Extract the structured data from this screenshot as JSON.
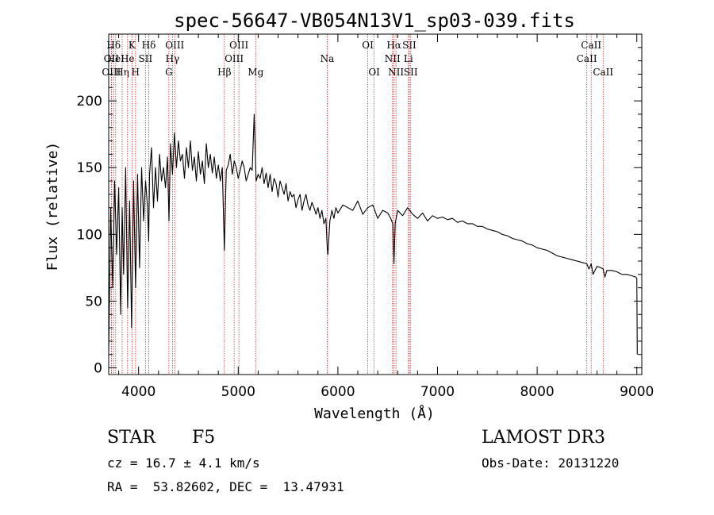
{
  "chart_data": {
    "type": "line",
    "title": "spec-56647-VB054N13V1_sp03-039.fits",
    "xlabel": "Wavelength (Å)",
    "ylabel": "Flux (relative)",
    "xlim": [
      3700,
      9050
    ],
    "ylim": [
      -5,
      250
    ],
    "xticks": [
      4000,
      5000,
      6000,
      7000,
      8000,
      9000
    ],
    "yticks": [
      0,
      50,
      100,
      150,
      200
    ],
    "series": [
      {
        "name": "flux",
        "x": [
          3700,
          3720,
          3740,
          3760,
          3780,
          3800,
          3820,
          3835,
          3850,
          3870,
          3890,
          3910,
          3930,
          3950,
          3970,
          3990,
          4010,
          4030,
          4050,
          4070,
          4090,
          4101,
          4110,
          4130,
          4150,
          4170,
          4190,
          4210,
          4230,
          4250,
          4270,
          4290,
          4305,
          4320,
          4340,
          4360,
          4380,
          4400,
          4420,
          4440,
          4460,
          4480,
          4500,
          4520,
          4540,
          4560,
          4580,
          4600,
          4620,
          4640,
          4660,
          4680,
          4700,
          4720,
          4740,
          4760,
          4780,
          4800,
          4820,
          4840,
          4861,
          4880,
          4900,
          4920,
          4940,
          4960,
          4980,
          5000,
          5020,
          5040,
          5060,
          5080,
          5100,
          5120,
          5140,
          5160,
          5170,
          5180,
          5200,
          5220,
          5240,
          5260,
          5280,
          5300,
          5320,
          5340,
          5360,
          5380,
          5400,
          5420,
          5440,
          5460,
          5480,
          5500,
          5520,
          5540,
          5560,
          5580,
          5600,
          5620,
          5640,
          5660,
          5680,
          5700,
          5720,
          5740,
          5760,
          5780,
          5800,
          5820,
          5840,
          5860,
          5880,
          5893,
          5900,
          5920,
          5940,
          5960,
          5980,
          6000,
          6050,
          6100,
          6150,
          6200,
          6250,
          6300,
          6350,
          6400,
          6450,
          6500,
          6530,
          6550,
          6563,
          6575,
          6600,
          6650,
          6700,
          6750,
          6800,
          6850,
          6900,
          6950,
          7000,
          7050,
          7100,
          7150,
          7200,
          7250,
          7300,
          7350,
          7400,
          7450,
          7500,
          7550,
          7600,
          7650,
          7700,
          7750,
          7800,
          7850,
          7900,
          7950,
          8000,
          8050,
          8100,
          8150,
          8200,
          8250,
          8300,
          8350,
          8400,
          8450,
          8498,
          8520,
          8542,
          8560,
          8600,
          8640,
          8662,
          8680,
          8700,
          8750,
          8800,
          8850,
          8900,
          8950,
          8990,
          9000,
          9005
        ],
        "values": [
          10,
          120,
          60,
          140,
          85,
          135,
          40,
          120,
          70,
          150,
          45,
          125,
          30,
          140,
          60,
          145,
          75,
          150,
          110,
          140,
          120,
          95,
          145,
          165,
          120,
          150,
          125,
          160,
          140,
          150,
          135,
          158,
          110,
          168,
          145,
          176,
          150,
          170,
          155,
          160,
          142,
          165,
          150,
          170,
          148,
          158,
          140,
          162,
          145,
          155,
          138,
          168,
          150,
          160,
          146,
          158,
          142,
          152,
          140,
          150,
          88,
          148,
          152,
          160,
          145,
          155,
          150,
          142,
          148,
          155,
          150,
          140,
          145,
          150,
          148,
          190,
          165,
          140,
          145,
          142,
          150,
          138,
          146,
          135,
          145,
          132,
          142,
          138,
          128,
          140,
          135,
          130,
          138,
          125,
          132,
          128,
          130,
          120,
          126,
          130,
          118,
          125,
          130,
          122,
          118,
          124,
          120,
          115,
          120,
          112,
          118,
          108,
          112,
          90,
          85,
          110,
          118,
          112,
          120,
          116,
          122,
          120,
          118,
          125,
          115,
          120,
          122,
          112,
          118,
          116,
          112,
          108,
          78,
          108,
          118,
          114,
          120,
          115,
          112,
          116,
          110,
          114,
          112,
          113,
          111,
          112,
          109,
          110,
          108,
          108,
          106,
          106,
          104,
          103,
          102,
          100,
          99,
          97,
          96,
          95,
          93,
          92,
          90,
          89,
          88,
          86,
          84,
          83,
          82,
          81,
          80,
          79,
          78,
          74,
          78,
          70,
          76,
          75,
          74,
          68,
          73,
          73,
          72,
          70,
          70,
          69,
          68,
          67,
          10
        ]
      }
    ],
    "spectral_lines": [
      {
        "name": "Hδ",
        "wl": 3750,
        "row": 1
      },
      {
        "name": "OII",
        "wl": 3727,
        "row": 2
      },
      {
        "name": "OIII",
        "wl": 3727,
        "row": 3
      },
      {
        "name": "HeI",
        "wl": 3770,
        "row": 2
      },
      {
        "name": "Hη",
        "wl": 3835,
        "row": 3
      },
      {
        "name": "He",
        "wl": 3889,
        "row": 2
      },
      {
        "name": "K",
        "wl": 3934,
        "row": 1
      },
      {
        "name": "H",
        "wl": 3969,
        "row": 3
      },
      {
        "name": "SII",
        "wl": 4069,
        "row": 2
      },
      {
        "name": "Hδ",
        "wl": 4102,
        "row": 1
      },
      {
        "name": "OIII",
        "wl": 4363,
        "row": 1
      },
      {
        "name": "Hγ",
        "wl": 4340,
        "row": 2
      },
      {
        "name": "G",
        "wl": 4304,
        "row": 3
      },
      {
        "name": "Hβ",
        "wl": 4861,
        "row": 3
      },
      {
        "name": "OIII",
        "wl": 5007,
        "row": 1
      },
      {
        "name": "OIII",
        "wl": 4959,
        "row": 2
      },
      {
        "name": "Mg",
        "wl": 5175,
        "row": 3
      },
      {
        "name": "Na",
        "wl": 5893,
        "row": 2
      },
      {
        "name": "OI",
        "wl": 6300,
        "row": 1
      },
      {
        "name": "OI",
        "wl": 6364,
        "row": 3
      },
      {
        "name": "Hα",
        "wl": 6563,
        "row": 1
      },
      {
        "name": "NII",
        "wl": 6548,
        "row": 2
      },
      {
        "name": "NII",
        "wl": 6583,
        "row": 3
      },
      {
        "name": "SII",
        "wl": 6717,
        "row": 1
      },
      {
        "name": "Li",
        "wl": 6708,
        "row": 2
      },
      {
        "name": "SII",
        "wl": 6731,
        "row": 3
      },
      {
        "name": "CaII",
        "wl": 8542,
        "row": 1
      },
      {
        "name": "CaII",
        "wl": 8498,
        "row": 2
      },
      {
        "name": "CaII",
        "wl": 8662,
        "row": 3
      }
    ]
  },
  "info": {
    "class": "STAR",
    "subclass": "F5",
    "redshift": "cz = 16.7 ± 4.1 km/s",
    "coords": "RA =  53.82602, DEC =  13.47931",
    "survey": "LAMOST DR3",
    "obs_date": "Obs-Date: 20131220"
  },
  "colors": {
    "line_marker": "#c83232",
    "spectrum": "#000000"
  }
}
